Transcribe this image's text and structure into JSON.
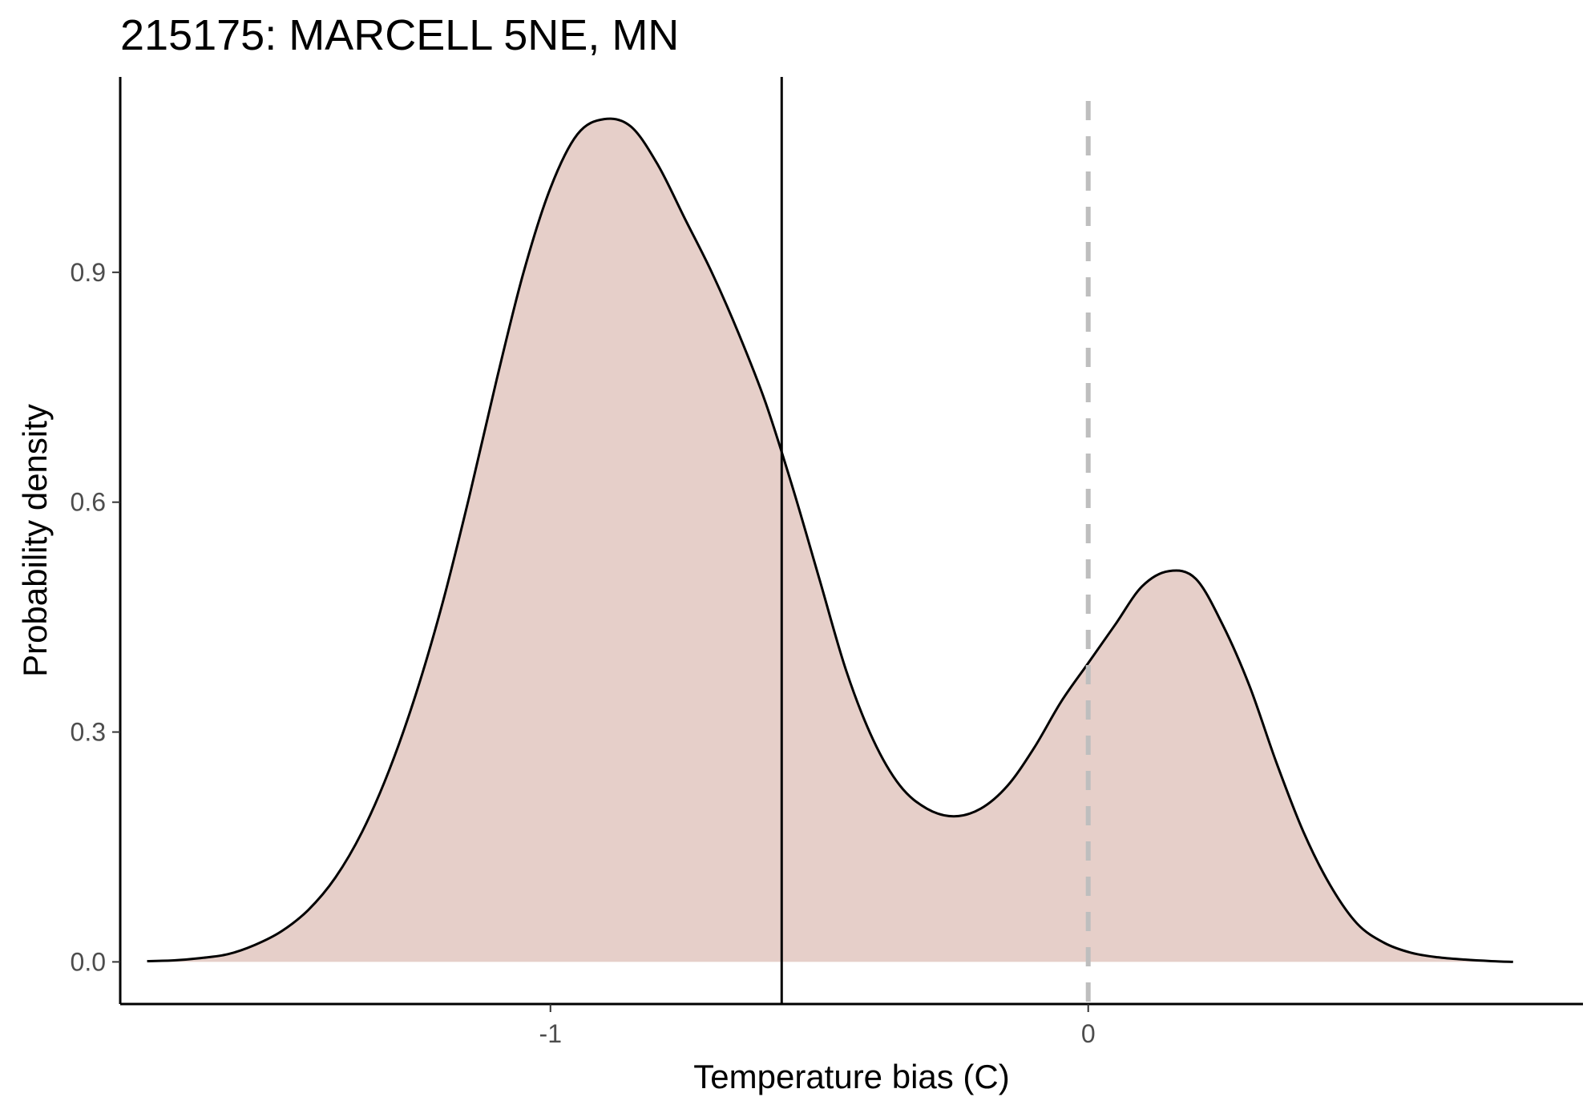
{
  "chart_data": {
    "type": "area",
    "title": "215175: MARCELL 5NE, MN",
    "xlabel": "Temperature bias (C)",
    "ylabel": "Probability density",
    "xlim": [
      -1.8,
      0.92
    ],
    "ylim": [
      -0.055,
      1.155
    ],
    "x_ticks": [
      -1,
      0
    ],
    "x_tick_labels": [
      "-1",
      "0"
    ],
    "y_ticks": [
      0.0,
      0.3,
      0.6,
      0.9
    ],
    "y_tick_labels": [
      "0.0",
      "0.3",
      "0.6",
      "0.9"
    ],
    "grid": false,
    "legend": "none",
    "fill_color": "#e6cfc9",
    "line_color": "#000000",
    "vline_color": "#000000",
    "ref_line_color": "#bebebe",
    "series": [
      {
        "x": [
          -1.75,
          -1.7,
          -1.65,
          -1.6,
          -1.55,
          -1.5,
          -1.45,
          -1.4,
          -1.35,
          -1.3,
          -1.25,
          -1.2,
          -1.15,
          -1.1,
          -1.05,
          -1.0,
          -0.95,
          -0.9,
          -0.85,
          -0.8,
          -0.75,
          -0.7,
          -0.65,
          -0.6,
          -0.55,
          -0.5,
          -0.45,
          -0.4,
          -0.35,
          -0.3,
          -0.25,
          -0.2,
          -0.15,
          -0.1,
          -0.05,
          0.0,
          0.05,
          0.1,
          0.15,
          0.2,
          0.25,
          0.3,
          0.35,
          0.4,
          0.45,
          0.5,
          0.55,
          0.6,
          0.65,
          0.7,
          0.75,
          0.79
        ],
        "y": [
          0.001,
          0.002,
          0.005,
          0.01,
          0.022,
          0.04,
          0.068,
          0.11,
          0.17,
          0.25,
          0.35,
          0.47,
          0.61,
          0.76,
          0.9,
          1.01,
          1.08,
          1.1,
          1.09,
          1.04,
          0.97,
          0.9,
          0.82,
          0.73,
          0.62,
          0.5,
          0.38,
          0.29,
          0.23,
          0.2,
          0.19,
          0.2,
          0.23,
          0.28,
          0.34,
          0.39,
          0.44,
          0.49,
          0.51,
          0.5,
          0.44,
          0.36,
          0.26,
          0.17,
          0.1,
          0.05,
          0.025,
          0.012,
          0.006,
          0.003,
          0.001,
          0.0
        ]
      }
    ],
    "vline_x": -0.57,
    "ref_vline_x": 0
  }
}
